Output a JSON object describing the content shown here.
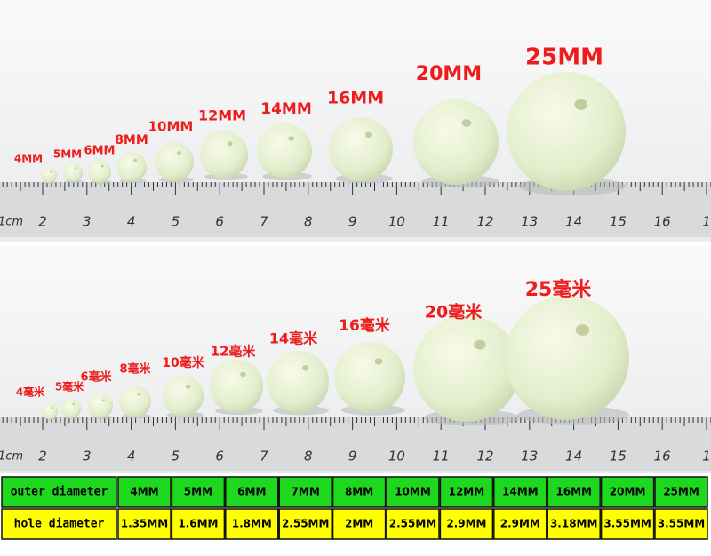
{
  "top_panel": {
    "labels": [
      "4MM",
      "5MM",
      "6MM",
      "8MM",
      "10MM",
      "12MM",
      "14MM",
      "16MM",
      "20MM",
      "25MM"
    ],
    "ruler": [
      "1cm",
      "2",
      "3",
      "4",
      "5",
      "6",
      "7",
      "8",
      "9",
      "10",
      "11",
      "12",
      "13",
      "14",
      "15",
      "16",
      "1"
    ]
  },
  "bottom_panel": {
    "labels": [
      "4毫米",
      "5毫米",
      "6毫米",
      "8毫米",
      "10毫米",
      "12毫米",
      "14毫米",
      "16毫米",
      "20毫米",
      "25毫米"
    ],
    "ruler": [
      "1cm",
      "2",
      "3",
      "4",
      "5",
      "6",
      "7",
      "8",
      "9",
      "10",
      "11",
      "12",
      "13",
      "14",
      "15",
      "16",
      "1"
    ]
  },
  "table": {
    "rows": [
      [
        "outer diameter",
        "4MM",
        "5MM",
        "6MM",
        "7MM",
        "8MM",
        "10MM",
        "12MM",
        "14MM",
        "16MM",
        "20MM",
        "25MM"
      ],
      [
        "hole diameter",
        "1.35MM",
        "1.6MM",
        "1.8MM",
        "2.55MM",
        "2MM",
        "2.55MM",
        "2.9MM",
        "2.9MM",
        "3.18MM",
        "3.55MM",
        "3.55MM"
      ]
    ]
  }
}
